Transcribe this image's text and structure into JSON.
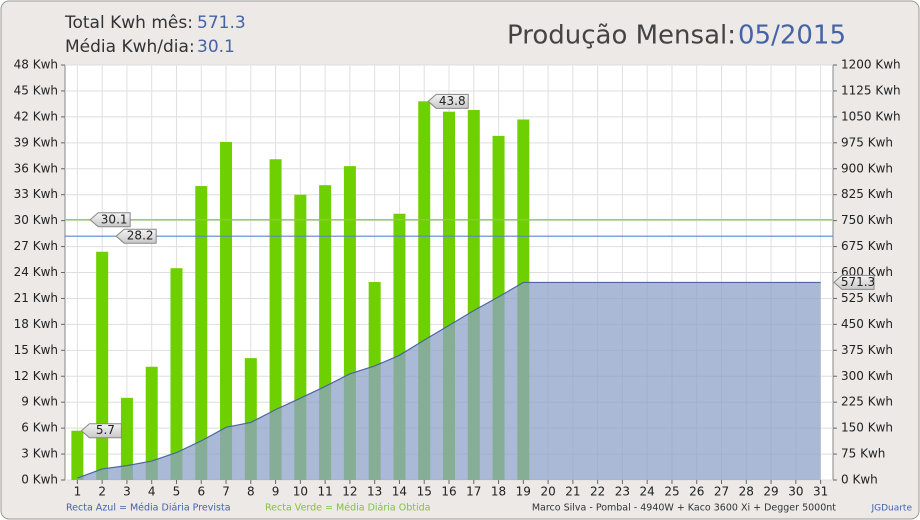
{
  "header": {
    "total_label": "Total Kwh mês:",
    "total_value": 571.3,
    "avg_label": "Média Kwh/dia:",
    "avg_value": 30.1,
    "title": "Produção Mensal:",
    "period": "05/2015"
  },
  "chart_data": {
    "type": "bar",
    "categories": [
      "1",
      "2",
      "3",
      "4",
      "5",
      "6",
      "7",
      "8",
      "9",
      "10",
      "11",
      "12",
      "13",
      "14",
      "15",
      "16",
      "17",
      "18",
      "19",
      "20",
      "21",
      "22",
      "23",
      "24",
      "25",
      "26",
      "27",
      "28",
      "29",
      "30",
      "31"
    ],
    "series": [
      {
        "type": "bar",
        "color": "#6fd000",
        "values": [
          5.7,
          26.4,
          9.5,
          13.1,
          24.5,
          34.0,
          39.1,
          14.1,
          37.1,
          33.0,
          34.1,
          36.3,
          22.9,
          30.8,
          43.8,
          42.6,
          42.8,
          39.8,
          41.7,
          null,
          null,
          null,
          null,
          null,
          null,
          null,
          null,
          null,
          null,
          null,
          null
        ]
      },
      {
        "type": "area",
        "axis": "y2",
        "color": "#8ea2c8",
        "values": [
          5.7,
          32.1,
          41.6,
          54.7,
          79.2,
          113.2,
          152.3,
          166.4,
          203.5,
          236.5,
          270.6,
          306.9,
          329.8,
          360.6,
          404.4,
          447.0,
          489.8,
          529.6,
          571.3,
          571.3,
          571.3,
          571.3,
          571.3,
          571.3,
          571.3,
          571.3,
          571.3,
          571.3,
          571.3,
          571.3,
          571.3
        ]
      }
    ],
    "ylim": [
      0,
      48
    ],
    "yticks": [
      {
        "value": 0,
        "label": "0 Kwh"
      },
      {
        "value": 3,
        "label": "3 Kwh"
      },
      {
        "value": 6,
        "label": "6 Kwh"
      },
      {
        "value": 9,
        "label": "9 Kwh"
      },
      {
        "value": 12,
        "label": "12 Kwh"
      },
      {
        "value": 15,
        "label": "15 Kwh"
      },
      {
        "value": 18,
        "label": "18 Kwh"
      },
      {
        "value": 21,
        "label": "21 Kwh"
      },
      {
        "value": 24,
        "label": "24 Kwh"
      },
      {
        "value": 27,
        "label": "27 Kwh"
      },
      {
        "value": 30,
        "label": "30 Kwh"
      },
      {
        "value": 33,
        "label": "33 Kwh"
      },
      {
        "value": 36,
        "label": "36 Kwh"
      },
      {
        "value": 39,
        "label": "39 Kwh"
      },
      {
        "value": 42,
        "label": "42 Kwh"
      },
      {
        "value": 45,
        "label": "45 Kwh"
      },
      {
        "value": 48,
        "label": "48 Kwh"
      }
    ],
    "y2lim": [
      0,
      1200
    ],
    "y2ticks": [
      {
        "value": 0,
        "label": "0 Kwh"
      },
      {
        "value": 75,
        "label": "75 Kwh"
      },
      {
        "value": 150,
        "label": "150 Kwh"
      },
      {
        "value": 225,
        "label": "225 Kwh"
      },
      {
        "value": 300,
        "label": "300 Kwh"
      },
      {
        "value": 375,
        "label": "375 Kwh"
      },
      {
        "value": 450,
        "label": "450 Kwh"
      },
      {
        "value": 525,
        "label": "525 Kwh"
      },
      {
        "value": 600,
        "label": "600 Kwh"
      },
      {
        "value": 675,
        "label": "675 Kwh"
      },
      {
        "value": 750,
        "label": "750 Kwh"
      },
      {
        "value": 825,
        "label": "825 Kwh"
      },
      {
        "value": 900,
        "label": "900 Kwh"
      },
      {
        "value": 975,
        "label": "975 Kwh"
      },
      {
        "value": 1050,
        "label": "1050 Kwh"
      },
      {
        "value": 1125,
        "label": "1125 Kwh"
      },
      {
        "value": 1200,
        "label": "1200 Kwh"
      }
    ],
    "grid": true,
    "reference_lines": [
      {
        "value": 30.1,
        "color": "#8cc850"
      },
      {
        "value": 28.2,
        "color": "#5a86c8"
      }
    ],
    "bar_labels": [
      0,
      14
    ],
    "footer": {
      "left": "Recta Azul = Média Diária Prevista",
      "middle": "Recta Verde = Média Diária Obtida",
      "right": "Marco Silva - Pombal - 4940W + Kaco 3600 Xi + Degger 5000nt",
      "credit": "JGDuarte"
    }
  }
}
